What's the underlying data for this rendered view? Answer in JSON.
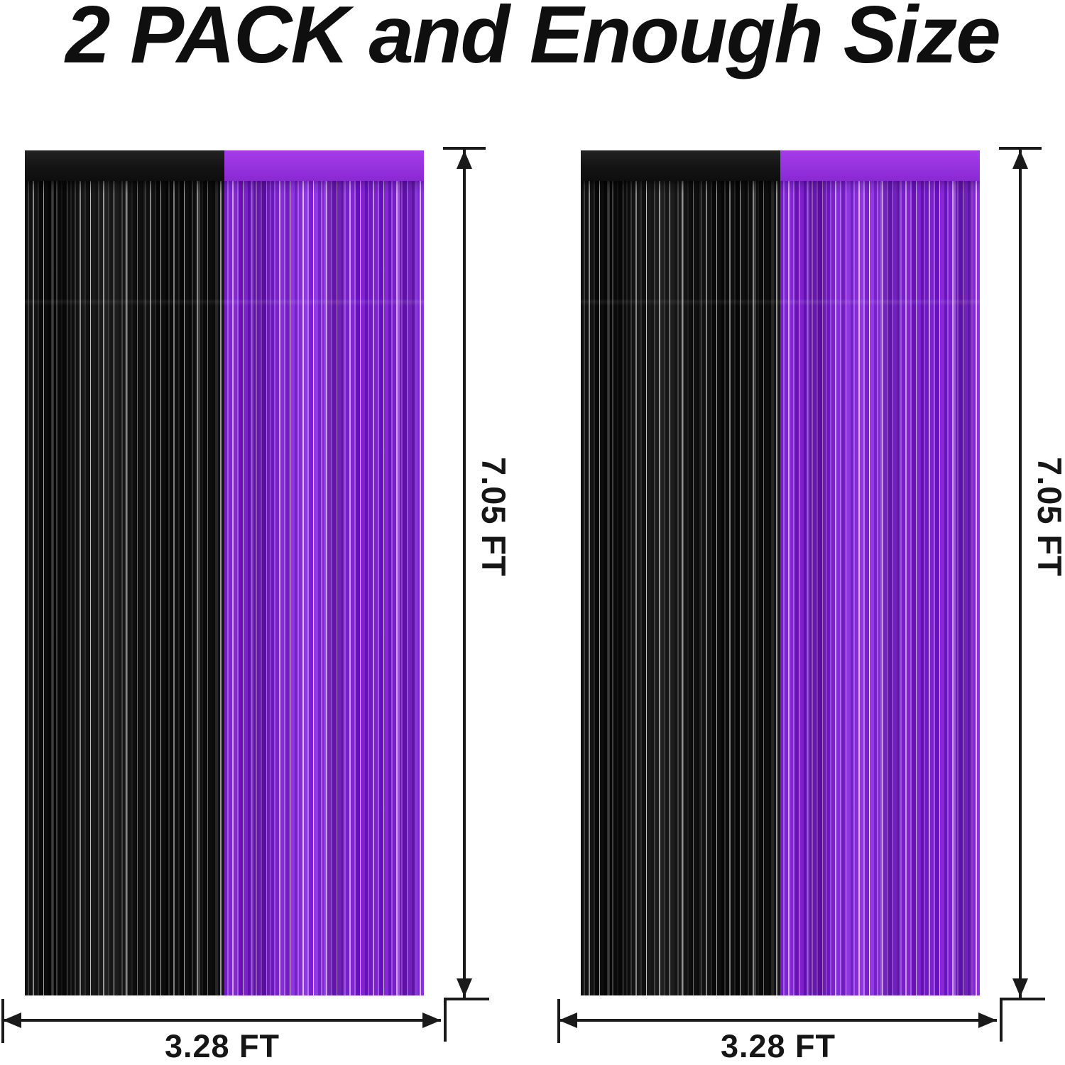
{
  "title": "2 PACK and Enough Size",
  "colors": {
    "annotation": "#1a1a1a",
    "purple": "#8d2be0",
    "purple_band": "#9431dd",
    "black": "#0d0d0d",
    "black_band": "#161616"
  },
  "panels": [
    {
      "id": "left",
      "height_label": "7.05 FT",
      "width_label": "3.28 FT"
    },
    {
      "id": "right",
      "height_label": "7.05 FT",
      "width_label": "3.28 FT"
    }
  ]
}
